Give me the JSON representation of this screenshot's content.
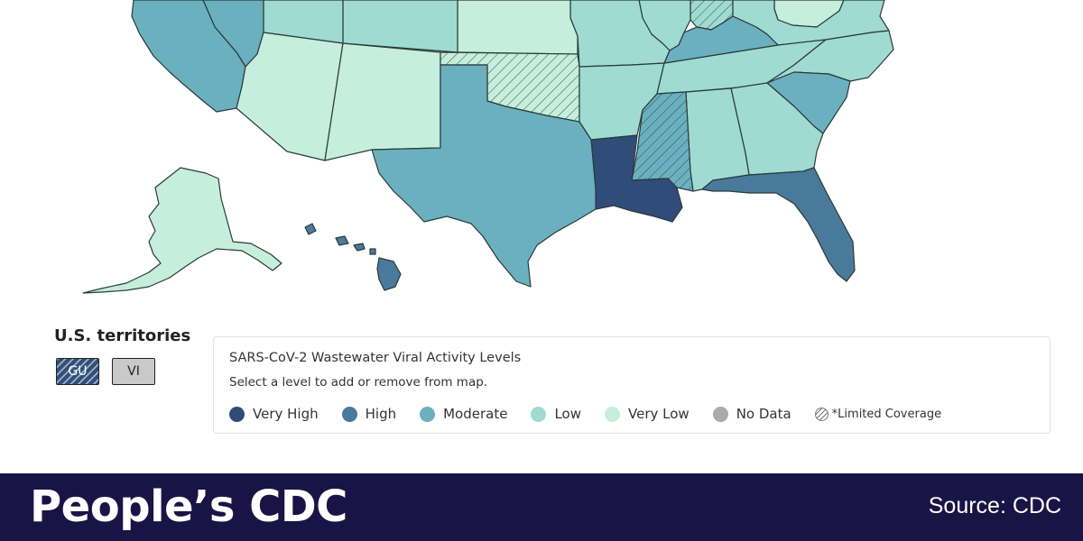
{
  "territories": {
    "title": "U.S. territories",
    "items": [
      {
        "label": "GU",
        "level": "Very High",
        "limited_coverage": true
      },
      {
        "label": "VI",
        "level": "No Data",
        "limited_coverage": false
      }
    ]
  },
  "legend": {
    "title": "SARS-CoV-2 Wastewater Viral Activity Levels",
    "hint": "Select a level to add or remove from map.",
    "items": [
      {
        "label": "Very High",
        "color": "#2f4d78"
      },
      {
        "label": "High",
        "color": "#4a7a9b"
      },
      {
        "label": "Moderate",
        "color": "#6bb0bf"
      },
      {
        "label": "Low",
        "color": "#9fdbd1"
      },
      {
        "label": "Very Low",
        "color": "#c5eedc"
      },
      {
        "label": "No Data",
        "color": "#aaaaaa"
      }
    ],
    "limited_coverage_label": "*Limited Coverage"
  },
  "map": {
    "states": [
      {
        "name": "California",
        "level": "Moderate"
      },
      {
        "name": "Nevada",
        "level": "Moderate"
      },
      {
        "name": "Arizona",
        "level": "Very Low"
      },
      {
        "name": "New Mexico",
        "level": "Very Low"
      },
      {
        "name": "Utah",
        "level": "Low"
      },
      {
        "name": "Colorado",
        "level": "Low"
      },
      {
        "name": "Kansas",
        "level": "Very Low"
      },
      {
        "name": "Oklahoma",
        "level": "Very Low",
        "limited_coverage": true
      },
      {
        "name": "Texas",
        "level": "Moderate"
      },
      {
        "name": "Missouri",
        "level": "Low"
      },
      {
        "name": "Arkansas",
        "level": "Low"
      },
      {
        "name": "Louisiana",
        "level": "Very High"
      },
      {
        "name": "Mississippi",
        "level": "Moderate",
        "limited_coverage": true
      },
      {
        "name": "Alabama",
        "level": "Low"
      },
      {
        "name": "Georgia",
        "level": "Low"
      },
      {
        "name": "Florida",
        "level": "High"
      },
      {
        "name": "South Carolina",
        "level": "Moderate"
      },
      {
        "name": "North Carolina",
        "level": "Low"
      },
      {
        "name": "Tennessee",
        "level": "Low"
      },
      {
        "name": "Kentucky",
        "level": "Moderate"
      },
      {
        "name": "Illinois",
        "level": "Low"
      },
      {
        "name": "Indiana",
        "level": "Low",
        "limited_coverage": true
      },
      {
        "name": "Ohio",
        "level": "Very Low"
      },
      {
        "name": "Virginia",
        "level": "Low"
      },
      {
        "name": "Alaska",
        "level": "Very Low"
      },
      {
        "name": "Hawaii",
        "level": "High"
      }
    ]
  },
  "footer": {
    "brand": "People’s CDC",
    "source": "Source: CDC"
  }
}
